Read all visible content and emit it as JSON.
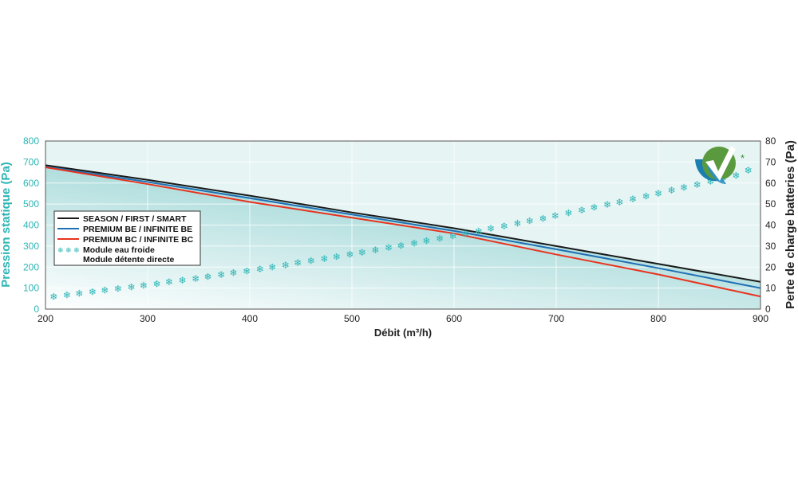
{
  "chart_data": {
    "type": "line",
    "xlabel": "Débit (m³/h)",
    "ylabel": "Pression statique (Pa)",
    "y2label": "Perte de charge batteries (Pa)",
    "xlim": [
      200,
      900
    ],
    "ylim": [
      0,
      800
    ],
    "y2lim": [
      0,
      80
    ],
    "xticks": [
      "200",
      "300",
      "400",
      "500",
      "600",
      "700",
      "800",
      "900"
    ],
    "yticks": [
      "0",
      "100",
      "200",
      "300",
      "400",
      "500",
      "600",
      "700",
      "800"
    ],
    "y2ticks": [
      "0",
      "10",
      "20",
      "30",
      "40",
      "50",
      "60",
      "70",
      "80"
    ],
    "grid": true,
    "legend_placement": "center-left",
    "series": [
      {
        "name": "SEASON / FIRST / SMART",
        "color": "#1a1a1a",
        "axis": "left",
        "x": [
          200,
          300,
          400,
          500,
          600,
          700,
          800,
          900
        ],
        "y": [
          685,
          615,
          540,
          460,
          385,
          300,
          215,
          130
        ]
      },
      {
        "name": "PREMIUM BE / INFINITE BE",
        "color": "#1f6fb5",
        "axis": "left",
        "x": [
          200,
          300,
          400,
          500,
          600,
          700,
          800,
          900
        ],
        "y": [
          678,
          605,
          528,
          450,
          372,
          285,
          195,
          100
        ]
      },
      {
        "name": "PREMIUM BC / INFINITE BC",
        "color": "#e8331e",
        "axis": "left",
        "x": [
          200,
          300,
          400,
          500,
          600,
          700,
          800,
          900
        ],
        "y": [
          675,
          595,
          510,
          435,
          360,
          260,
          165,
          60
        ]
      },
      {
        "name": "Module eau froide",
        "name2": "Module détente directe",
        "color": "#2cb5b5",
        "axis": "right",
        "marker": "snowflake-icon",
        "x": [
          208,
          221,
          233,
          246,
          258,
          271,
          284,
          296,
          309,
          321,
          334,
          347,
          359,
          372,
          384,
          397,
          410,
          422,
          435,
          447,
          460,
          473,
          485,
          498,
          510,
          523,
          536,
          548,
          561,
          573,
          586,
          599,
          611,
          624,
          636,
          649,
          662,
          674,
          687,
          699,
          712,
          725,
          737,
          750,
          762,
          775,
          788,
          800,
          813,
          825,
          838,
          851,
          863,
          876,
          888
        ],
        "y": [
          5.9,
          6.7,
          7.4,
          8.1,
          8.9,
          9.6,
          10.4,
          11.2,
          12.0,
          12.9,
          13.7,
          14.5,
          15.4,
          16.3,
          17.2,
          18.1,
          19.0,
          20.0,
          20.9,
          21.9,
          22.9,
          23.9,
          24.9,
          25.9,
          27.0,
          28.0,
          29.1,
          30.2,
          31.3,
          32.4,
          33.6,
          34.7,
          35.9,
          37.0,
          38.2,
          39.4,
          40.7,
          41.9,
          43.1,
          44.4,
          45.7,
          47.0,
          48.3,
          49.6,
          50.9,
          52.3,
          53.6,
          55.0,
          56.4,
          57.8,
          59.2,
          60.7,
          62.1,
          63.6,
          66.0
        ]
      }
    ],
    "colors": {
      "left_axis": "#2cb5b5",
      "plot_bg": "#e6f4f4",
      "fill": "#a3d8d8"
    },
    "logo": {
      "icon": "checkmark-logo-icon",
      "asterisk": "*"
    }
  }
}
